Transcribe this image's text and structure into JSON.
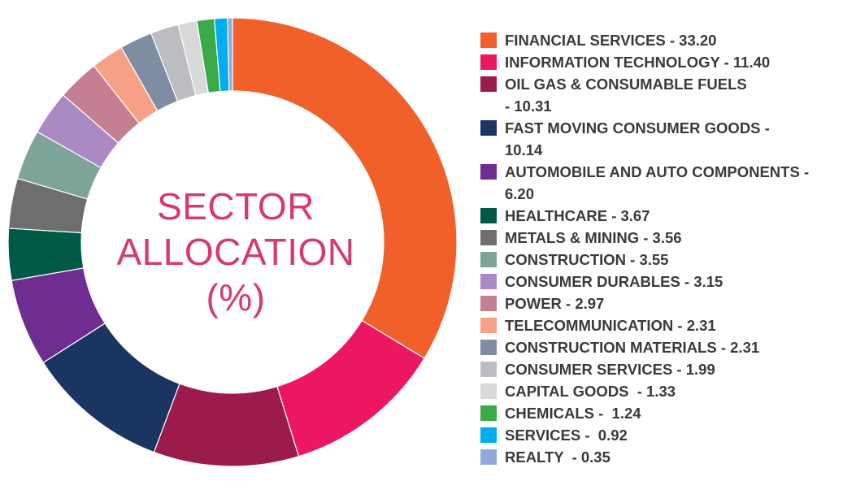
{
  "chart_data": {
    "type": "pie",
    "title": [
      "SECTOR",
      "ALLOCATION",
      "(%)"
    ],
    "series": [
      {
        "label": "FINANCIAL SERVICES - 33.20",
        "value": 33.2,
        "color": "#f15f2a"
      },
      {
        "label": "INFORMATION TECHNOLOGY - 11.40",
        "value": 11.4,
        "color": "#ec1763"
      },
      {
        "label": "OIL GAS & CONSUMABLE FUELS\n- 10.31",
        "value": 10.31,
        "color": "#9a1b4c"
      },
      {
        "label": "FAST MOVING CONSUMER GOODS -\n10.14",
        "value": 10.14,
        "color": "#1b3563"
      },
      {
        "label": "AUTOMOBILE AND AUTO COMPONENTS -\n6.20",
        "value": 6.2,
        "color": "#6f2c91"
      },
      {
        "label": "HEALTHCARE - 3.67",
        "value": 3.67,
        "color": "#005a46"
      },
      {
        "label": "METALS & MINING - 3.56",
        "value": 3.56,
        "color": "#6d6e70"
      },
      {
        "label": "CONSTRUCTION - 3.55",
        "value": 3.55,
        "color": "#7ea398"
      },
      {
        "label": "CONSUMER DURABLES - 3.15",
        "value": 3.15,
        "color": "#ab8ac4"
      },
      {
        "label": "POWER - 2.97",
        "value": 2.97,
        "color": "#c57f93"
      },
      {
        "label": "TELECOMMUNICATION - 2.31",
        "value": 2.31,
        "color": "#f6a086"
      },
      {
        "label": "CONSTRUCTION MATERIALS - 2.31",
        "value": 2.31,
        "color": "#7f8da3"
      },
      {
        "label": "CONSUMER SERVICES - 1.99",
        "value": 1.99,
        "color": "#bcbdc0"
      },
      {
        "label": "CAPITAL GOODS  - 1.33",
        "value": 1.33,
        "color": "#d9d9d9"
      },
      {
        "label": "CHEMICALS -  1.24",
        "value": 1.24,
        "color": "#3aaa49"
      },
      {
        "label": "SERVICES -  0.92",
        "value": 0.92,
        "color": "#00aeef"
      },
      {
        "label": "REALTY  - 0.35",
        "value": 0.35,
        "color": "#8fa9dc"
      }
    ],
    "legend_position": "right"
  }
}
